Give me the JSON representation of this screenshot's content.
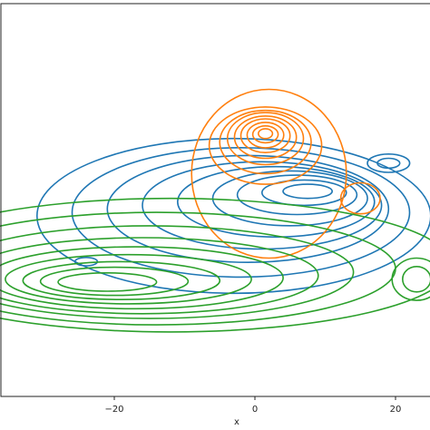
{
  "chart_data": {
    "type": "contour",
    "xlabel": "x",
    "ylabel": "",
    "title": "",
    "xlim": [
      -36,
      25
    ],
    "x_ticks": [
      -20,
      0,
      20
    ],
    "x_tick_labels": [
      "−20",
      "0",
      "20"
    ],
    "grid": false,
    "legend": "none",
    "series": [
      {
        "color": "#1f77b4",
        "rings": [
          {
            "cx": -3,
            "cy": 0,
            "rx": 28,
            "ry": 11
          },
          {
            "cx": -2,
            "cy": 0.5,
            "rx": 24,
            "ry": 9.2
          },
          {
            "cx": -1,
            "cy": 1,
            "rx": 20,
            "ry": 7.6
          },
          {
            "cx": 1,
            "cy": 1.5,
            "rx": 17,
            "ry": 6.2
          },
          {
            "cx": 3,
            "cy": 2,
            "rx": 14,
            "ry": 5
          },
          {
            "cx": 5,
            "cy": 2.5,
            "rx": 11,
            "ry": 3.9
          },
          {
            "cx": 6,
            "cy": 3,
            "rx": 8.5,
            "ry": 2.8
          },
          {
            "cx": 7,
            "cy": 3.3,
            "rx": 6,
            "ry": 1.8
          },
          {
            "cx": 7.5,
            "cy": 3.5,
            "rx": 3.5,
            "ry": 1
          },
          {
            "cx": 19,
            "cy": 7.5,
            "rx": 3,
            "ry": 1.3
          },
          {
            "cx": 19,
            "cy": 7.5,
            "rx": 1.6,
            "ry": 0.7
          },
          {
            "cx": -24,
            "cy": -6.5,
            "rx": 1.6,
            "ry": 0.6
          }
        ]
      },
      {
        "color": "#ff7f0e",
        "rings": [
          {
            "cx": 2,
            "cy": 6,
            "rx": 11,
            "ry": 12
          },
          {
            "cx": 1.5,
            "cy": 10,
            "rx": 8,
            "ry": 5.5
          },
          {
            "cx": 1.5,
            "cy": 10.5,
            "rx": 6.5,
            "ry": 4.5
          },
          {
            "cx": 1.5,
            "cy": 11,
            "rx": 5.4,
            "ry": 3.7
          },
          {
            "cx": 1.5,
            "cy": 11.2,
            "rx": 4.4,
            "ry": 3
          },
          {
            "cx": 1.5,
            "cy": 11.4,
            "rx": 3.5,
            "ry": 2.4
          },
          {
            "cx": 1.5,
            "cy": 11.5,
            "rx": 2.6,
            "ry": 1.8
          },
          {
            "cx": 1.5,
            "cy": 11.6,
            "rx": 1.8,
            "ry": 1.2
          },
          {
            "cx": 1.5,
            "cy": 11.7,
            "rx": 1,
            "ry": 0.7
          },
          {
            "cx": 15,
            "cy": 2.5,
            "rx": 2.8,
            "ry": 2.2
          }
        ]
      },
      {
        "color": "#2ca02c",
        "rings": [
          {
            "cx": -12,
            "cy": -7,
            "rx": 40,
            "ry": 9.5
          },
          {
            "cx": -14,
            "cy": -7.5,
            "rx": 34,
            "ry": 8
          },
          {
            "cx": -15,
            "cy": -8,
            "rx": 29,
            "ry": 6.6
          },
          {
            "cx": -16,
            "cy": -8.5,
            "rx": 25,
            "ry": 5.4
          },
          {
            "cx": -17,
            "cy": -8.8,
            "rx": 21,
            "ry": 4.4
          },
          {
            "cx": -18,
            "cy": -9,
            "rx": 17.5,
            "ry": 3.5
          },
          {
            "cx": -19,
            "cy": -9.2,
            "rx": 14,
            "ry": 2.7
          },
          {
            "cx": -20,
            "cy": -9.3,
            "rx": 10.5,
            "ry": 2
          },
          {
            "cx": -21,
            "cy": -9.4,
            "rx": 7,
            "ry": 1.3
          },
          {
            "cx": 23,
            "cy": -9,
            "rx": 3.5,
            "ry": 3
          },
          {
            "cx": 23,
            "cy": -9,
            "rx": 2,
            "ry": 1.8
          }
        ]
      }
    ]
  }
}
